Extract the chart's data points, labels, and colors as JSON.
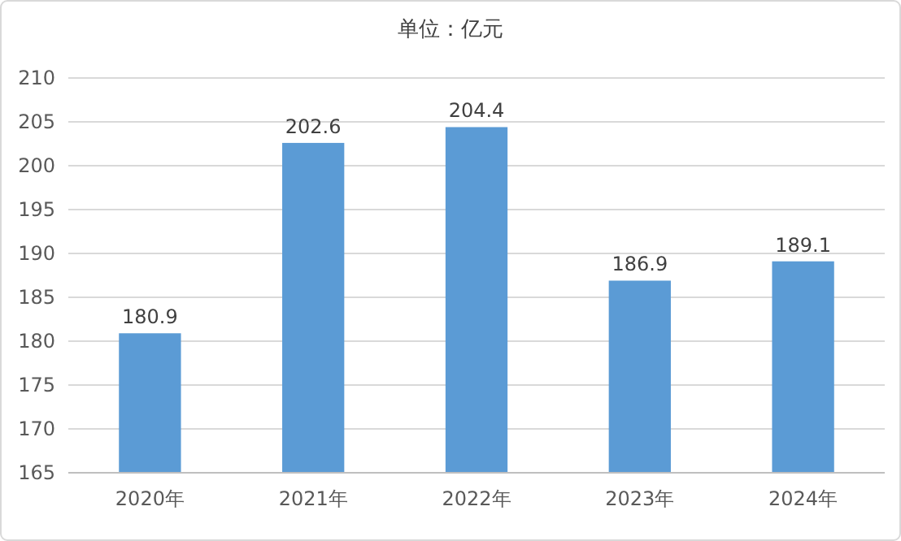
{
  "chart_data": {
    "type": "bar",
    "title": "单位：亿元",
    "categories": [
      "2020年",
      "2021年",
      "2022年",
      "2023年",
      "2024年"
    ],
    "values": [
      180.9,
      202.6,
      204.4,
      186.9,
      189.1
    ],
    "color": "#5b9bd5",
    "ylim": [
      165,
      210
    ],
    "yticks": [
      165,
      170,
      175,
      180,
      185,
      190,
      195,
      200,
      205,
      210
    ],
    "grid": "y",
    "data_labels": true
  }
}
